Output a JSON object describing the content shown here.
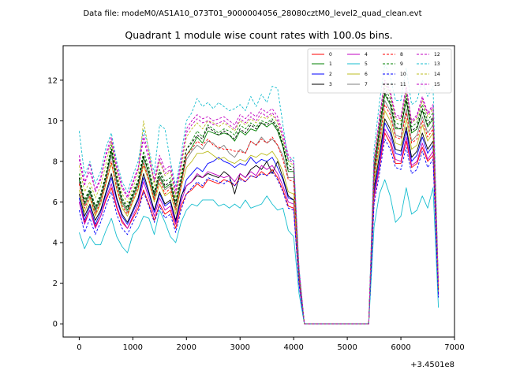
{
  "chart_data": {
    "type": "line",
    "suptitle": "Data file: modeM0/AS1A10_073T01_9000004056_28080cztM0_level2_quad_clean.evt",
    "title": "Quadrant 1 module wise count rates with 100.0s bins.",
    "xlabel": "",
    "ylabel": "",
    "x_offset_label": "+3.4501e8",
    "xlim": [
      -300,
      7000
    ],
    "ylim": [
      -0.65,
      13.7
    ],
    "x_ticks": [
      0,
      1000,
      2000,
      3000,
      4000,
      5000,
      6000,
      7000
    ],
    "x_tick_labels": [
      "0",
      "1000",
      "2000",
      "3000",
      "4000",
      "5000",
      "6000",
      "7000"
    ],
    "y_ticks": [
      0,
      2,
      4,
      6,
      8,
      10,
      12
    ],
    "y_tick_labels": [
      "0",
      "2",
      "4",
      "6",
      "8",
      "10",
      "12"
    ],
    "grid": false,
    "legend_position": "top-right",
    "legend_columns": 4,
    "x": [
      0,
      100,
      200,
      300,
      400,
      500,
      600,
      700,
      800,
      900,
      1000,
      1100,
      1200,
      1300,
      1400,
      1500,
      1600,
      1700,
      1800,
      1900,
      2000,
      2100,
      2200,
      2300,
      2400,
      2500,
      2600,
      2700,
      2800,
      2900,
      3000,
      3100,
      3200,
      3300,
      3400,
      3500,
      3600,
      3700,
      3800,
      3900,
      4000,
      4100,
      4200,
      4300,
      4400,
      4500,
      4600,
      4700,
      4800,
      4900,
      5000,
      5100,
      5200,
      5300,
      5400,
      5500,
      5600,
      5700,
      5800,
      5900,
      6000,
      6100,
      6200,
      6300,
      6400,
      6500,
      6600,
      6700
    ],
    "series": [
      {
        "name": "0",
        "color": "#ff0000",
        "dash": "solid",
        "values": [
          6.0,
          5.0,
          5.6,
          4.8,
          5.3,
          6.1,
          6.7,
          5.7,
          5.0,
          4.7,
          5.2,
          5.7,
          6.6,
          5.9,
          5.1,
          5.9,
          5.4,
          5.6,
          4.7,
          5.8,
          6.4,
          6.6,
          6.9,
          6.7,
          7.1,
          7.0,
          6.9,
          7.1,
          7.0,
          6.8,
          7.2,
          7.0,
          7.3,
          7.2,
          7.5,
          7.3,
          7.6,
          7.2,
          6.6,
          5.8,
          5.7,
          2.0,
          0,
          0,
          0,
          0,
          0,
          0,
          0,
          0,
          0,
          0,
          0,
          0,
          0,
          6.2,
          7.7,
          9.4,
          8.9,
          7.9,
          7.9,
          9.0,
          7.7,
          7.9,
          8.7,
          8.0,
          8.3,
          1.4
        ]
      },
      {
        "name": "1",
        "color": "#008000",
        "dash": "solid",
        "values": [
          7.1,
          5.9,
          6.5,
          5.6,
          6.2,
          7.2,
          8.5,
          7.0,
          6.0,
          5.6,
          6.3,
          6.9,
          8.2,
          7.4,
          6.3,
          7.3,
          6.7,
          6.9,
          5.8,
          7.0,
          8.3,
          8.7,
          9.2,
          8.9,
          9.5,
          9.4,
          9.3,
          9.4,
          9.3,
          9.0,
          9.5,
          9.3,
          9.6,
          9.5,
          9.9,
          9.7,
          9.9,
          9.5,
          8.7,
          7.5,
          7.5,
          2.5,
          0,
          0,
          0,
          0,
          0,
          0,
          0,
          0,
          0,
          0,
          0,
          0,
          0,
          7.5,
          9.5,
          11.3,
          10.8,
          9.6,
          9.6,
          11.0,
          9.4,
          9.6,
          10.5,
          9.7,
          10.1,
          1.7
        ]
      },
      {
        "name": "2",
        "color": "#0000ff",
        "dash": "solid",
        "values": [
          6.2,
          5.1,
          5.8,
          4.9,
          5.5,
          6.4,
          7.2,
          6.1,
          5.3,
          4.9,
          5.5,
          6.1,
          7.2,
          6.4,
          5.5,
          6.4,
          5.8,
          6.0,
          5.0,
          6.2,
          7.1,
          7.4,
          7.7,
          7.5,
          7.9,
          8.0,
          8.2,
          8.0,
          7.9,
          7.7,
          7.9,
          7.8,
          8.2,
          7.9,
          8.1,
          8.0,
          8.2,
          7.7,
          7.1,
          6.2,
          6.1,
          2.1,
          0,
          0,
          0,
          0,
          0,
          0,
          0,
          0,
          0,
          0,
          0,
          0,
          0,
          6.5,
          8.0,
          9.9,
          9.4,
          8.4,
          8.3,
          9.5,
          8.0,
          8.3,
          9.2,
          8.4,
          8.8,
          1.5
        ]
      },
      {
        "name": "3",
        "color": "#000000",
        "dash": "solid",
        "values": [
          6.4,
          5.3,
          5.9,
          5.1,
          5.6,
          6.5,
          7.4,
          6.2,
          5.4,
          5.0,
          5.6,
          6.2,
          7.4,
          6.5,
          5.6,
          6.5,
          5.9,
          6.1,
          5.1,
          6.3,
          6.8,
          7.0,
          7.3,
          7.2,
          7.4,
          7.3,
          7.2,
          7.5,
          7.3,
          6.4,
          7.4,
          7.2,
          7.6,
          7.8,
          7.6,
          8.0,
          7.4,
          8.0,
          7.2,
          6.3,
          6.1,
          2.2,
          0,
          0,
          0,
          0,
          0,
          0,
          0,
          0,
          0,
          0,
          0,
          0,
          0,
          6.7,
          8.3,
          10.1,
          9.6,
          8.6,
          8.5,
          9.7,
          8.2,
          8.5,
          9.4,
          8.6,
          9.0,
          1.6
        ]
      },
      {
        "name": "4",
        "color": "#c000c0",
        "dash": "solid",
        "values": [
          6.0,
          4.9,
          5.6,
          4.7,
          5.3,
          6.2,
          6.9,
          5.8,
          5.1,
          4.7,
          5.3,
          5.9,
          7.0,
          6.2,
          5.3,
          6.2,
          5.6,
          5.8,
          4.9,
          6.0,
          6.8,
          7.0,
          7.4,
          7.2,
          7.5,
          7.4,
          7.3,
          7.2,
          7.3,
          7.0,
          7.4,
          7.2,
          7.5,
          7.3,
          7.8,
          7.6,
          7.8,
          7.4,
          6.8,
          6.0,
          5.9,
          2.0,
          0,
          0,
          0,
          0,
          0,
          0,
          0,
          0,
          0,
          0,
          0,
          0,
          0,
          6.3,
          7.8,
          9.6,
          9.1,
          8.1,
          8.0,
          9.2,
          7.8,
          8.0,
          8.9,
          8.1,
          8.5,
          1.4
        ]
      },
      {
        "name": "5",
        "color": "#17becf",
        "dash": "solid",
        "values": [
          4.5,
          3.7,
          4.3,
          3.9,
          3.9,
          4.6,
          5.2,
          4.3,
          3.8,
          3.5,
          4.4,
          4.7,
          5.3,
          5.2,
          4.4,
          5.6,
          5.0,
          4.3,
          4.0,
          5.0,
          5.6,
          5.9,
          5.8,
          6.1,
          6.1,
          6.1,
          5.8,
          5.9,
          5.7,
          5.9,
          5.7,
          6.1,
          5.7,
          5.8,
          5.9,
          6.3,
          5.9,
          5.6,
          5.7,
          4.6,
          4.3,
          1.5,
          0,
          0,
          0,
          0,
          0,
          0,
          0,
          0,
          0,
          0,
          0,
          0,
          0,
          4.8,
          6.4,
          7.1,
          6.3,
          5.0,
          5.3,
          6.7,
          5.4,
          5.6,
          6.3,
          5.7,
          6.7,
          0.8
        ]
      },
      {
        "name": "6",
        "color": "#bcbd22",
        "dash": "solid",
        "values": [
          6.6,
          5.5,
          6.2,
          5.3,
          5.9,
          6.9,
          7.9,
          6.6,
          5.7,
          5.3,
          6.0,
          6.6,
          7.8,
          7.0,
          6.0,
          6.9,
          6.3,
          6.5,
          5.4,
          6.7,
          7.7,
          8.0,
          8.4,
          8.4,
          8.5,
          8.3,
          8.1,
          8.2,
          8.0,
          7.9,
          8.1,
          8.0,
          8.3,
          8.2,
          8.4,
          8.3,
          8.5,
          8.1,
          7.5,
          6.5,
          6.4,
          2.3,
          0,
          0,
          0,
          0,
          0,
          0,
          0,
          0,
          0,
          0,
          0,
          0,
          0,
          7.0,
          8.7,
          10.5,
          10.0,
          8.9,
          8.8,
          10.1,
          8.6,
          8.8,
          9.8,
          9.0,
          9.4,
          1.6
        ]
      },
      {
        "name": "7",
        "color": "#7f7f7f",
        "dash": "solid",
        "values": [
          7.0,
          5.8,
          6.4,
          5.5,
          6.1,
          7.1,
          8.3,
          6.9,
          5.9,
          5.5,
          6.2,
          6.8,
          8.0,
          7.2,
          6.2,
          7.2,
          6.6,
          6.8,
          5.7,
          6.9,
          8.1,
          8.5,
          8.8,
          8.6,
          9.0,
          8.9,
          8.6,
          8.8,
          8.4,
          8.2,
          8.6,
          8.4,
          9.0,
          8.8,
          9.2,
          8.9,
          9.1,
          8.8,
          8.3,
          7.2,
          7.2,
          2.4,
          0,
          0,
          0,
          0,
          0,
          0,
          0,
          0,
          0,
          0,
          0,
          0,
          0,
          7.3,
          9.2,
          11.0,
          10.5,
          9.3,
          9.2,
          10.6,
          9.0,
          9.3,
          10.2,
          9.4,
          9.8,
          1.7
        ]
      },
      {
        "name": "8",
        "color": "#ff0000",
        "dash": "dashed",
        "values": [
          6.9,
          5.7,
          6.3,
          5.4,
          6.0,
          7.0,
          8.0,
          6.7,
          5.8,
          5.4,
          6.1,
          6.7,
          7.9,
          7.1,
          6.1,
          7.1,
          6.4,
          6.7,
          5.6,
          6.8,
          8.3,
          8.6,
          9.0,
          8.8,
          9.1,
          8.8,
          8.7,
          8.6,
          8.6,
          8.5,
          8.5,
          8.4,
          9.0,
          8.8,
          9.1,
          8.9,
          9.2,
          8.8,
          8.1,
          7.1,
          7.0,
          2.4,
          0,
          0,
          0,
          0,
          0,
          0,
          0,
          0,
          0,
          0,
          0,
          0,
          0,
          7.2,
          9.0,
          10.8,
          10.3,
          9.2,
          9.1,
          10.4,
          8.9,
          9.1,
          10.0,
          9.2,
          9.6,
          1.7
        ]
      },
      {
        "name": "9",
        "color": "#008000",
        "dash": "dashed",
        "values": [
          7.4,
          6.1,
          6.7,
          5.8,
          6.4,
          7.4,
          8.8,
          7.3,
          6.2,
          5.8,
          6.5,
          7.1,
          8.5,
          7.7,
          6.5,
          7.6,
          7.0,
          7.2,
          6.0,
          7.3,
          8.6,
          9.0,
          9.5,
          9.2,
          9.8,
          9.6,
          9.4,
          9.6,
          9.5,
          9.3,
          9.8,
          9.6,
          9.9,
          9.7,
          10.0,
          9.9,
          10.1,
          9.7,
          8.9,
          7.8,
          7.7,
          2.6,
          0,
          0,
          0,
          0,
          0,
          0,
          0,
          0,
          0,
          0,
          0,
          0,
          0,
          7.8,
          9.8,
          11.6,
          11.1,
          9.9,
          9.8,
          11.3,
          9.7,
          9.9,
          10.8,
          10.0,
          10.4,
          1.8
        ]
      },
      {
        "name": "10",
        "color": "#0000ff",
        "dash": "dashed",
        "values": [
          5.6,
          4.5,
          5.2,
          4.4,
          5.0,
          5.8,
          6.5,
          5.4,
          4.7,
          4.4,
          5.0,
          5.5,
          6.5,
          5.8,
          5.0,
          5.8,
          5.2,
          5.4,
          4.5,
          5.6,
          6.4,
          6.7,
          7.0,
          6.8,
          7.2,
          7.1,
          7.0,
          6.9,
          7.1,
          6.8,
          7.1,
          7.0,
          7.3,
          7.2,
          7.4,
          7.3,
          7.5,
          7.1,
          6.5,
          5.7,
          5.6,
          1.9,
          0,
          0,
          0,
          0,
          0,
          0,
          0,
          0,
          0,
          0,
          0,
          0,
          0,
          5.9,
          7.4,
          9.1,
          8.6,
          7.7,
          7.6,
          8.7,
          7.4,
          7.6,
          8.5,
          7.7,
          8.1,
          1.3
        ]
      },
      {
        "name": "11",
        "color": "#000000",
        "dash": "dashed",
        "values": [
          7.2,
          6.0,
          6.6,
          5.7,
          6.3,
          7.3,
          8.6,
          7.2,
          6.1,
          5.7,
          6.4,
          7.0,
          8.3,
          7.5,
          6.4,
          7.5,
          6.8,
          7.0,
          5.9,
          7.1,
          8.6,
          8.9,
          9.3,
          9.1,
          9.7,
          9.5,
          9.3,
          9.5,
          9.3,
          9.1,
          9.6,
          9.4,
          9.8,
          9.6,
          9.9,
          9.8,
          10.0,
          9.6,
          8.8,
          7.6,
          7.6,
          2.5,
          0,
          0,
          0,
          0,
          0,
          0,
          0,
          0,
          0,
          0,
          0,
          0,
          0,
          7.6,
          9.6,
          11.4,
          10.9,
          9.7,
          9.6,
          11.1,
          9.5,
          9.7,
          10.6,
          9.8,
          10.2,
          1.8
        ]
      },
      {
        "name": "12",
        "color": "#c000c0",
        "dash": "dashed",
        "values": [
          8.1,
          6.8,
          7.9,
          6.5,
          7.1,
          8.3,
          9.0,
          7.6,
          6.7,
          6.2,
          6.9,
          7.6,
          9.1,
          8.1,
          7.0,
          8.1,
          7.4,
          7.6,
          6.4,
          7.8,
          9.6,
          10.0,
          10.3,
          10.1,
          10.2,
          10.0,
          10.1,
          10.2,
          10.0,
          9.8,
          10.3,
          10.1,
          10.4,
          10.2,
          10.6,
          10.4,
          10.6,
          10.2,
          9.4,
          8.3,
          8.0,
          2.7,
          0,
          0,
          0,
          0,
          0,
          0,
          0,
          0,
          0,
          0,
          0,
          0,
          0,
          8.0,
          10.2,
          12.0,
          11.5,
          10.3,
          10.2,
          11.7,
          10.0,
          10.3,
          11.2,
          10.4,
          10.8,
          1.9
        ]
      },
      {
        "name": "13",
        "color": "#17becf",
        "dash": "dashed",
        "values": [
          9.5,
          7.3,
          8.0,
          6.9,
          7.5,
          8.7,
          9.4,
          8.0,
          7.0,
          6.5,
          7.3,
          8.0,
          9.6,
          8.6,
          7.4,
          9.8,
          9.6,
          8.0,
          6.8,
          8.3,
          10.0,
          10.4,
          11.1,
          10.7,
          10.9,
          10.6,
          10.9,
          10.7,
          10.5,
          10.6,
          10.8,
          10.5,
          11.2,
          10.7,
          11.3,
          10.9,
          11.7,
          11.6,
          9.8,
          8.0,
          8.2,
          2.8,
          0,
          0,
          0,
          0,
          0,
          0,
          0,
          0,
          0,
          0,
          0,
          0,
          0,
          8.6,
          10.9,
          12.8,
          12.2,
          11.0,
          11.0,
          12.6,
          10.8,
          11.0,
          12.0,
          11.2,
          11.7,
          2.0
        ]
      },
      {
        "name": "14",
        "color": "#bcbd22",
        "dash": "dashed",
        "values": [
          7.8,
          6.5,
          7.0,
          6.2,
          6.8,
          7.9,
          9.0,
          7.5,
          6.4,
          6.0,
          6.7,
          7.4,
          10.0,
          8.5,
          6.8,
          8.0,
          7.3,
          7.5,
          6.2,
          7.6,
          9.2,
          9.6,
          9.9,
          9.6,
          10.0,
          9.9,
          9.7,
          9.9,
          9.7,
          9.5,
          10.0,
          9.8,
          10.1,
          9.9,
          10.2,
          10.1,
          10.3,
          9.9,
          9.1,
          8.0,
          7.8,
          2.6,
          0,
          0,
          0,
          0,
          0,
          0,
          0,
          0,
          0,
          0,
          0,
          0,
          0,
          7.9,
          10.0,
          11.8,
          11.3,
          10.1,
          10.0,
          11.5,
          9.9,
          10.1,
          11.0,
          10.2,
          10.6,
          1.8
        ]
      },
      {
        "name": "15",
        "color": "#c000c0",
        "dash": "dashed",
        "values": [
          8.3,
          7.0,
          7.5,
          6.6,
          7.2,
          8.4,
          9.2,
          7.8,
          6.8,
          6.3,
          7.0,
          7.7,
          9.3,
          8.3,
          7.1,
          8.3,
          7.6,
          7.8,
          6.6,
          8.0,
          9.4,
          9.8,
          10.1,
          9.9,
          10.0,
          9.8,
          9.9,
          10.0,
          9.8,
          9.6,
          10.1,
          9.9,
          10.2,
          10.0,
          10.4,
          10.2,
          10.4,
          10.0,
          9.2,
          8.1,
          7.9,
          2.7,
          0,
          0,
          0,
          0,
          0,
          0,
          0,
          0,
          0,
          0,
          0,
          0,
          0,
          8.1,
          10.1,
          11.9,
          11.4,
          10.2,
          10.1,
          11.6,
          9.9,
          10.2,
          11.1,
          10.3,
          10.7,
          1.9
        ]
      }
    ]
  }
}
